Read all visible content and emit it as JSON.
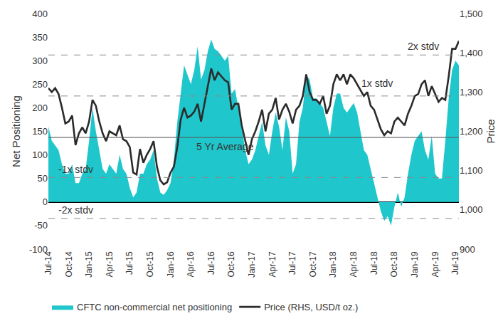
{
  "chart_data": {
    "type": "line",
    "ylabel": "Net Positioning",
    "y2label": "Price",
    "categories": [
      "Jul-14",
      null,
      null,
      null,
      null,
      null,
      "Oct-14",
      null,
      null,
      null,
      null,
      null,
      "Jan-15",
      null,
      null,
      null,
      null,
      null,
      "Apr-15",
      null,
      null,
      null,
      null,
      null,
      "Jul-15",
      null,
      null,
      null,
      null,
      null,
      "Oct-15",
      null,
      null,
      null,
      null,
      null,
      "Jan-16",
      null,
      null,
      null,
      null,
      null,
      "Apr-16",
      null,
      null,
      null,
      null,
      null,
      "Jul-16",
      null,
      null,
      null,
      null,
      null,
      "Oct-16",
      null,
      null,
      null,
      null,
      null,
      "Jan-17",
      null,
      null,
      null,
      null,
      null,
      "Apr-17",
      null,
      null,
      null,
      null,
      null,
      "Jul-17",
      null,
      null,
      null,
      null,
      null,
      "Oct-17",
      null,
      null,
      null,
      null,
      null,
      "Jan-18",
      null,
      null,
      null,
      null,
      null,
      "Apr-18",
      null,
      null,
      null,
      null,
      null,
      "Jul-18",
      null,
      null,
      null,
      null,
      null,
      "Oct-18",
      null,
      null,
      null,
      null,
      null,
      "Jan-19",
      null,
      null,
      null,
      null,
      null,
      "Apr-19",
      null,
      null,
      null,
      null,
      null,
      "Jul-19",
      null
    ],
    "series": [
      {
        "name": "CFTC non-commercial net positioning",
        "type": "area",
        "color": "#1fc7cc",
        "axis": "y",
        "values": [
          160,
          130,
          120,
          110,
          80,
          60,
          60,
          80,
          40,
          40,
          60,
          70,
          130,
          200,
          150,
          110,
          70,
          60,
          80,
          70,
          60,
          100,
          70,
          60,
          30,
          10,
          20,
          60,
          60,
          80,
          90,
          110,
          50,
          20,
          15,
          25,
          40,
          90,
          170,
          230,
          290,
          270,
          250,
          280,
          330,
          260,
          280,
          320,
          345,
          325,
          320,
          310,
          300,
          310,
          230,
          240,
          200,
          160,
          110,
          80,
          90,
          110,
          140,
          170,
          120,
          100,
          150,
          190,
          160,
          110,
          180,
          150,
          60,
          80,
          170,
          200,
          270,
          260,
          220,
          220,
          210,
          200,
          170,
          140,
          200,
          230,
          230,
          200,
          190,
          200,
          210,
          190,
          150,
          110,
          100,
          70,
          40,
          10,
          -20,
          -40,
          -30,
          -50,
          -10,
          20,
          -10,
          10,
          60,
          100,
          130,
          140,
          150,
          110,
          90,
          140,
          60,
          50,
          50,
          130,
          220,
          280,
          300,
          290
        ]
      },
      {
        "name": "Price (RHS, USD/t oz.)",
        "type": "line",
        "color": "#2b2b2b",
        "axis": "y2",
        "values": [
          1310,
          1300,
          1310,
          1295,
          1260,
          1220,
          1225,
          1240,
          1165,
          1195,
          1210,
          1195,
          1225,
          1280,
          1265,
          1225,
          1195,
          1175,
          1200,
          1195,
          1190,
          1215,
          1180,
          1175,
          1160,
          1095,
          1090,
          1155,
          1120,
          1140,
          1155,
          1175,
          1110,
          1075,
          1065,
          1070,
          1095,
          1110,
          1160,
          1230,
          1260,
          1235,
          1240,
          1250,
          1270,
          1225,
          1270,
          1320,
          1360,
          1330,
          1350,
          1340,
          1330,
          1325,
          1255,
          1270,
          1270,
          1215,
          1175,
          1140,
          1180,
          1200,
          1225,
          1255,
          1200,
          1245,
          1255,
          1285,
          1230,
          1255,
          1270,
          1250,
          1220,
          1255,
          1265,
          1290,
          1345,
          1300,
          1280,
          1280,
          1270,
          1290,
          1245,
          1265,
          1320,
          1345,
          1330,
          1345,
          1320,
          1345,
          1335,
          1320,
          1305,
          1290,
          1300,
          1265,
          1255,
          1230,
          1205,
          1190,
          1200,
          1195,
          1225,
          1235,
          1225,
          1215,
          1245,
          1265,
          1290,
          1295,
          1320,
          1330,
          1290,
          1315,
          1295,
          1275,
          1285,
          1280,
          1340,
          1410,
          1410,
          1430
        ]
      }
    ],
    "reference_lines": [
      {
        "label": "2x stdv",
        "value": 312,
        "line_style": "dashed"
      },
      {
        "label": "1x stdv",
        "value": 225,
        "line_style": "dashed"
      },
      {
        "label": "5 Yr Average",
        "value": 137,
        "line_style": "solid"
      },
      {
        "label": "-1x stdv",
        "value": 52,
        "line_style": "dashed"
      },
      {
        "label": "-2x stdv",
        "value": -35,
        "line_style": "dashed"
      }
    ],
    "ylim": [
      -100,
      400
    ],
    "yticks": [
      -100,
      -50,
      0,
      50,
      100,
      150,
      200,
      250,
      300,
      350,
      400
    ],
    "y2lim": [
      900,
      1500
    ],
    "y2ticks": [
      900,
      {
        "value": 1000,
        "label": "1,000"
      },
      {
        "value": 1100,
        "label": "1,100"
      },
      {
        "value": 1200,
        "label": "1,200"
      },
      {
        "value": 1300,
        "label": "1,300"
      },
      {
        "value": 1400,
        "label": "1,400"
      },
      {
        "value": 1500,
        "label": "1,500"
      }
    ],
    "grid": false,
    "legend": "bottom"
  }
}
